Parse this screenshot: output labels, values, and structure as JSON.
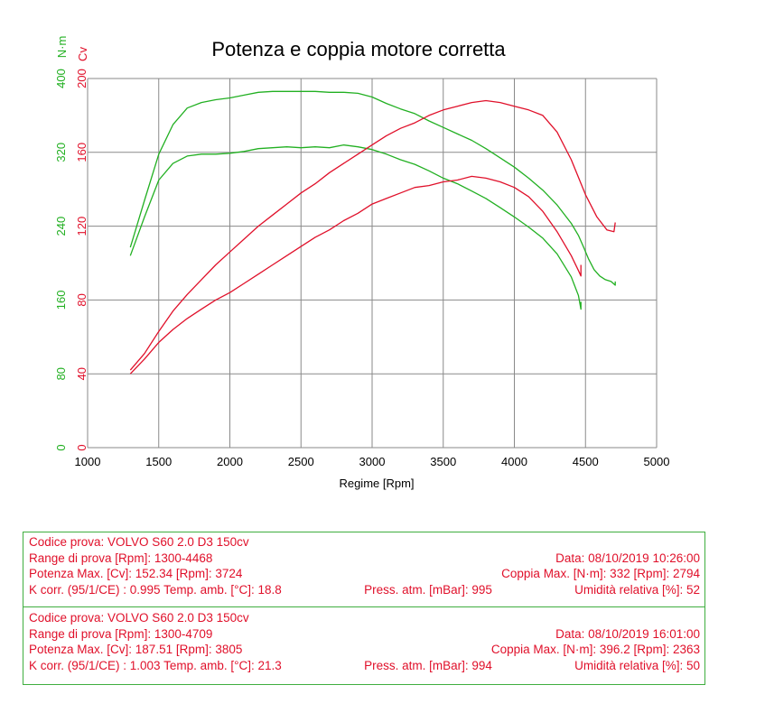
{
  "chart_data": {
    "type": "line",
    "title": "Potenza e coppia motore corretta",
    "xlabel": "Regime [Rpm]",
    "xlim": [
      1000,
      5000
    ],
    "x_ticks": [
      "1000",
      "1500",
      "2000",
      "2500",
      "3000",
      "3500",
      "4000",
      "4500",
      "5000"
    ],
    "y_axes": [
      {
        "unit": "N·m",
        "color": "#22b022",
        "lim": [
          0,
          400
        ],
        "ticks": [
          "0",
          "80",
          "160",
          "240",
          "320",
          "400"
        ]
      },
      {
        "unit": "Cv",
        "color": "#e0102a",
        "lim": [
          0,
          200
        ],
        "ticks": [
          "0",
          "40",
          "80",
          "120",
          "160",
          "200"
        ]
      }
    ],
    "grid": true,
    "series": [
      {
        "kind": "torque",
        "axis": 0,
        "color": "#22b022",
        "points": [
          [
            1300,
            217
          ],
          [
            1400,
            268
          ],
          [
            1500,
            318
          ],
          [
            1600,
            350
          ],
          [
            1700,
            368
          ],
          [
            1800,
            374
          ],
          [
            1900,
            377
          ],
          [
            2000,
            379
          ],
          [
            2100,
            382
          ],
          [
            2200,
            385
          ],
          [
            2300,
            386
          ],
          [
            2400,
            386
          ],
          [
            2500,
            386
          ],
          [
            2600,
            386
          ],
          [
            2700,
            385
          ],
          [
            2800,
            385
          ],
          [
            2900,
            384
          ],
          [
            3000,
            380
          ],
          [
            3100,
            373
          ],
          [
            3200,
            367
          ],
          [
            3300,
            362
          ],
          [
            3400,
            354
          ],
          [
            3500,
            347
          ],
          [
            3600,
            340
          ],
          [
            3700,
            333
          ],
          [
            3800,
            324
          ],
          [
            3900,
            314
          ],
          [
            4000,
            304
          ],
          [
            4100,
            292
          ],
          [
            4200,
            279
          ],
          [
            4300,
            263
          ],
          [
            4400,
            243
          ],
          [
            4450,
            230
          ],
          [
            4490,
            216
          ],
          [
            4520,
            205
          ],
          [
            4560,
            193
          ],
          [
            4600,
            186
          ],
          [
            4640,
            182
          ],
          [
            4680,
            180
          ],
          [
            4709,
            176
          ],
          [
            4709,
            180
          ]
        ]
      },
      {
        "kind": "torque",
        "axis": 0,
        "color": "#22b022",
        "points": [
          [
            1300,
            208
          ],
          [
            1400,
            250
          ],
          [
            1500,
            290
          ],
          [
            1600,
            308
          ],
          [
            1700,
            316
          ],
          [
            1800,
            318
          ],
          [
            1900,
            318
          ],
          [
            2000,
            319
          ],
          [
            2100,
            321
          ],
          [
            2200,
            324
          ],
          [
            2300,
            325
          ],
          [
            2400,
            326
          ],
          [
            2500,
            325
          ],
          [
            2600,
            326
          ],
          [
            2700,
            325
          ],
          [
            2800,
            328
          ],
          [
            2900,
            326
          ],
          [
            3000,
            323
          ],
          [
            3100,
            318
          ],
          [
            3200,
            312
          ],
          [
            3300,
            307
          ],
          [
            3400,
            300
          ],
          [
            3500,
            292
          ],
          [
            3600,
            286
          ],
          [
            3700,
            278
          ],
          [
            3800,
            270
          ],
          [
            3900,
            260
          ],
          [
            4000,
            250
          ],
          [
            4100,
            239
          ],
          [
            4200,
            227
          ],
          [
            4300,
            210
          ],
          [
            4400,
            185
          ],
          [
            4450,
            165
          ],
          [
            4468,
            150
          ],
          [
            4468,
            158
          ]
        ]
      },
      {
        "kind": "power",
        "axis": 1,
        "color": "#e0102a",
        "points": [
          [
            1300,
            42
          ],
          [
            1400,
            51
          ],
          [
            1500,
            63
          ],
          [
            1600,
            74
          ],
          [
            1700,
            83
          ],
          [
            1800,
            91
          ],
          [
            1900,
            99
          ],
          [
            2000,
            106
          ],
          [
            2100,
            113
          ],
          [
            2200,
            120
          ],
          [
            2300,
            126
          ],
          [
            2400,
            132
          ],
          [
            2500,
            138
          ],
          [
            2600,
            143
          ],
          [
            2700,
            149
          ],
          [
            2800,
            154
          ],
          [
            2900,
            159
          ],
          [
            3000,
            164
          ],
          [
            3100,
            169
          ],
          [
            3200,
            173
          ],
          [
            3300,
            176
          ],
          [
            3400,
            180
          ],
          [
            3500,
            183
          ],
          [
            3600,
            185
          ],
          [
            3700,
            187
          ],
          [
            3800,
            188
          ],
          [
            3900,
            187
          ],
          [
            4000,
            185
          ],
          [
            4100,
            183
          ],
          [
            4200,
            180
          ],
          [
            4300,
            171
          ],
          [
            4400,
            156
          ],
          [
            4500,
            137
          ],
          [
            4580,
            125
          ],
          [
            4650,
            118
          ],
          [
            4700,
            117
          ],
          [
            4709,
            122
          ]
        ]
      },
      {
        "kind": "power",
        "axis": 1,
        "color": "#e0102a",
        "points": [
          [
            1300,
            40
          ],
          [
            1400,
            48
          ],
          [
            1500,
            57
          ],
          [
            1600,
            64
          ],
          [
            1700,
            70
          ],
          [
            1800,
            75
          ],
          [
            1900,
            80
          ],
          [
            2000,
            84
          ],
          [
            2100,
            89
          ],
          [
            2200,
            94
          ],
          [
            2300,
            99
          ],
          [
            2400,
            104
          ],
          [
            2500,
            109
          ],
          [
            2600,
            114
          ],
          [
            2700,
            118
          ],
          [
            2800,
            123
          ],
          [
            2900,
            127
          ],
          [
            3000,
            132
          ],
          [
            3100,
            135
          ],
          [
            3200,
            138
          ],
          [
            3300,
            141
          ],
          [
            3400,
            142
          ],
          [
            3500,
            144
          ],
          [
            3600,
            145
          ],
          [
            3700,
            147
          ],
          [
            3800,
            146
          ],
          [
            3900,
            144
          ],
          [
            4000,
            141
          ],
          [
            4100,
            136
          ],
          [
            4200,
            128
          ],
          [
            4300,
            117
          ],
          [
            4400,
            104
          ],
          [
            4450,
            96
          ],
          [
            4468,
            93
          ],
          [
            4468,
            99
          ]
        ]
      }
    ]
  },
  "tests": [
    {
      "codice": "Codice prova: VOLVO S60 2.0 D3 150cv",
      "range": "Range di prova [Rpm]: 1300-4468",
      "data": "Data: 08/10/2019   10:26:00",
      "potenza": "Potenza Max. [Cv]: 152.34   [Rpm]: 3724",
      "coppia": "Coppia Max. [N·m]: 332   [Rpm]: 2794",
      "kcorr": "K corr. (95/1/CE) : 0.995   Temp. amb. [°C]: 18.8",
      "press": "Press. atm. [mBar]: 995",
      "umidita": "Umidità relativa [%]: 52"
    },
    {
      "codice": "Codice prova: VOLVO S60 2.0 D3 150cv",
      "range": "Range di prova [Rpm]: 1300-4709",
      "data": "Data: 08/10/2019   16:01:00",
      "potenza": "Potenza Max. [Cv]: 187.51   [Rpm]: 3805",
      "coppia": "Coppia Max. [N·m]: 396.2   [Rpm]: 2363",
      "kcorr": "K corr. (95/1/CE) : 1.003   Temp. amb. [°C]: 21.3",
      "press": "Press. atm. [mBar]: 994",
      "umidita": "Umidità relativa [%]: 50"
    }
  ]
}
